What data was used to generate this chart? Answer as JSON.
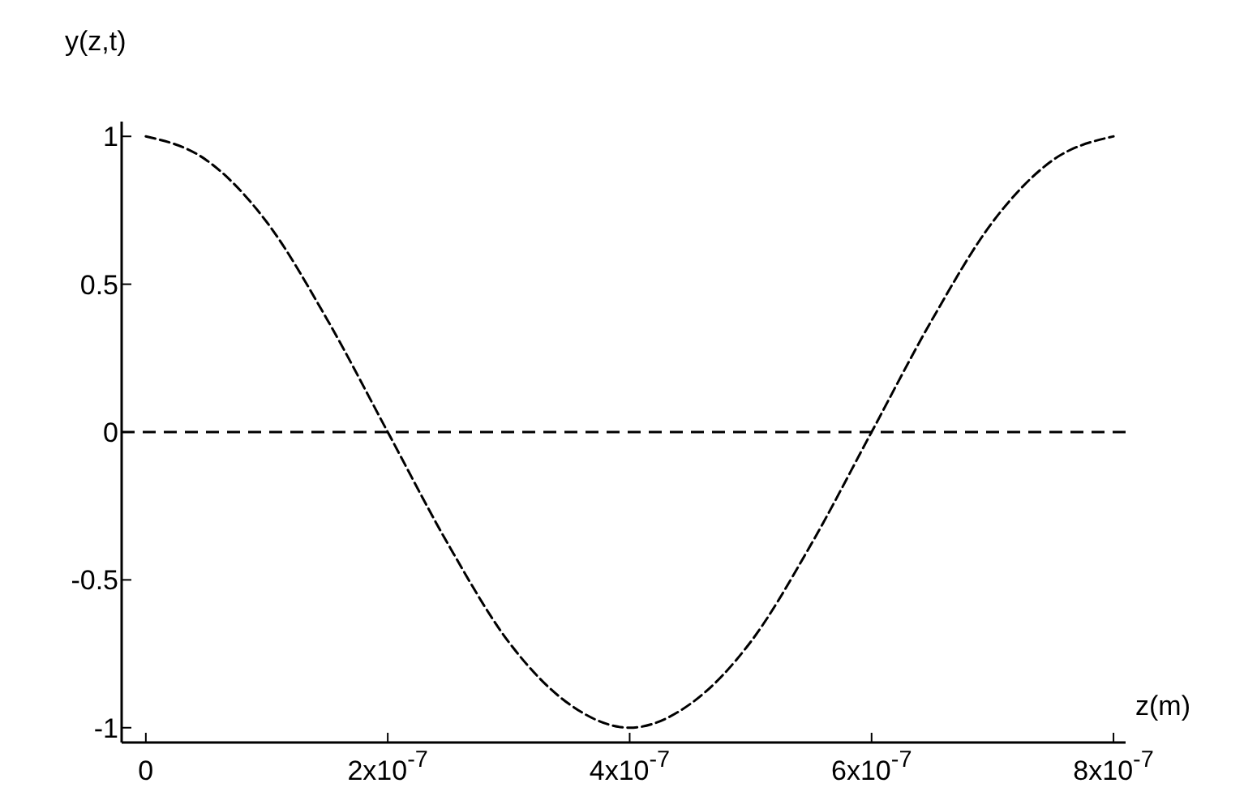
{
  "chart_data": {
    "type": "line",
    "xlabel": "z(m)",
    "ylabel": "y(z,t)",
    "x": [
      0,
      5e-08,
      1e-07,
      1.5e-07,
      2e-07,
      2.5e-07,
      3e-07,
      3.5e-07,
      4e-07,
      4.5e-07,
      5e-07,
      5.5e-07,
      6e-07,
      6.5e-07,
      7e-07,
      7.5e-07,
      8e-07
    ],
    "series": [
      {
        "color": "#000000",
        "values": [
          1,
          0.92,
          0.71,
          0.38,
          0,
          -0.38,
          -0.71,
          -0.92,
          -1,
          -0.92,
          -0.71,
          -0.38,
          0,
          0.38,
          0.71,
          0.92,
          1
        ]
      }
    ],
    "xlim": [
      -2e-08,
      8.1e-07
    ],
    "xticks": [
      0,
      {
        "value": 2e-07,
        "label": "2x10$^{-7}$"
      },
      {
        "value": 4e-07,
        "label": "4x10$^{-7}$"
      },
      {
        "value": 6e-07,
        "label": "6x10$^{-7}$"
      },
      {
        "value": 8e-07,
        "label": "8x10$^{-7}$"
      }
    ],
    "ylim": [
      -1.05,
      1.05
    ],
    "yticks": [
      -1,
      -0.5,
      0,
      0.5,
      1
    ],
    "ref_lines": [
      {
        "axis": "y",
        "value": 0,
        "color": "#000000",
        "line_style": "dashed"
      }
    ],
    "grid": false,
    "legend": false,
    "marker": "none",
    "line_style": "dashed"
  }
}
